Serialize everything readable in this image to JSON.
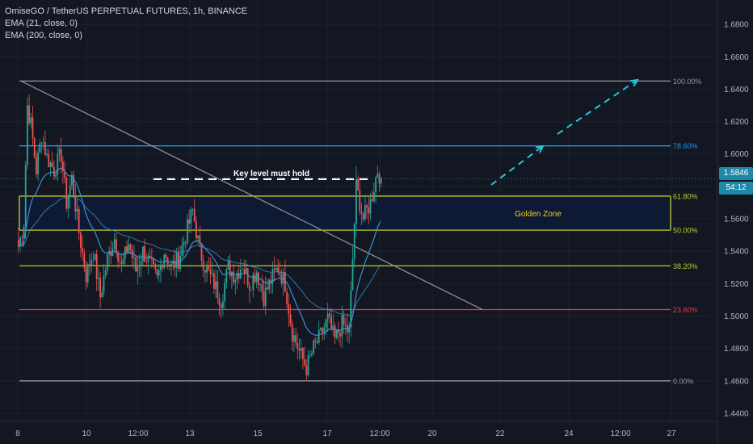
{
  "header": {
    "title": "OmiseGO / TetherUS PERPETUAL FUTURES, 1h, BINANCE",
    "indicators": [
      "EMA (21, close, 0)",
      "EMA (200, close, 0)"
    ]
  },
  "price_axis": {
    "ticks": [
      "1.6800",
      "1.6600",
      "1.6400",
      "1.6200",
      "1.6000",
      "1.5800",
      "1.5600",
      "1.5400",
      "1.5200",
      "1.5000",
      "1.4800",
      "1.4600",
      "1.4400"
    ],
    "current_price": "1.5846",
    "countdown": "54:12"
  },
  "annotations": {
    "key_level": "Key level must hold",
    "golden_zone": "Golden Zone"
  },
  "colors": {
    "background": "#131722",
    "up": "#26a69a",
    "down": "#ef5350",
    "ema21": "#3b8fd6",
    "ema200": "#3b8fd6",
    "fib_0": "#9598a1",
    "fib_100": "#9598a1",
    "fib_786": "#2196f3",
    "fib_618": "#c0ca33",
    "fib_50": "#c0ca33",
    "fib_382": "#c0ca33",
    "fib_236": "#f23645",
    "zone_fill": "#0e1a33",
    "arrow": "#26c6da",
    "trendline": "#9598a1",
    "price_tag": "#1e88a8"
  },
  "chart_data": {
    "type": "candlestick",
    "title": "OmiseGO / TetherUS PERPETUAL FUTURES, 1h, BINANCE",
    "x_ticks": [
      "8",
      "10",
      "12:00",
      "13",
      "15",
      "17",
      "12:00",
      "20",
      "22",
      "24",
      "12:00",
      "27"
    ],
    "ylim": [
      1.435,
      1.695
    ],
    "fib_levels": [
      {
        "label": "100.00%",
        "price": 1.645
      },
      {
        "label": "78.60%",
        "price": 1.605
      },
      {
        "label": "61.80%",
        "price": 1.574
      },
      {
        "label": "50.00%",
        "price": 1.553
      },
      {
        "label": "38.20%",
        "price": 1.531
      },
      {
        "label": "23.60%",
        "price": 1.504
      },
      {
        "label": "0.00%",
        "price": 1.46
      }
    ],
    "key_level_price": 1.5845,
    "last_price": 1.5846,
    "candles_note": "approximate hourly OHLC path",
    "path": [
      [
        0,
        1.543
      ],
      [
        3,
        1.558
      ],
      [
        5,
        1.63
      ],
      [
        7,
        1.618
      ],
      [
        10,
        1.59
      ],
      [
        13,
        1.612
      ],
      [
        16,
        1.598
      ],
      [
        20,
        1.59
      ],
      [
        24,
        1.6
      ],
      [
        27,
        1.57
      ],
      [
        30,
        1.585
      ],
      [
        34,
        1.552
      ],
      [
        38,
        1.525
      ],
      [
        42,
        1.54
      ],
      [
        46,
        1.512
      ],
      [
        50,
        1.535
      ],
      [
        54,
        1.548
      ],
      [
        58,
        1.53
      ],
      [
        62,
        1.545
      ],
      [
        66,
        1.528
      ],
      [
        70,
        1.54
      ],
      [
        74,
        1.532
      ],
      [
        78,
        1.522
      ],
      [
        82,
        1.54
      ],
      [
        86,
        1.53
      ],
      [
        90,
        1.535
      ],
      [
        94,
        1.55
      ],
      [
        98,
        1.565
      ],
      [
        102,
        1.54
      ],
      [
        106,
        1.528
      ],
      [
        110,
        1.52
      ],
      [
        114,
        1.51
      ],
      [
        118,
        1.53
      ],
      [
        122,
        1.525
      ],
      [
        126,
        1.532
      ],
      [
        130,
        1.52
      ],
      [
        134,
        1.528
      ],
      [
        138,
        1.512
      ],
      [
        142,
        1.522
      ],
      [
        146,
        1.53
      ],
      [
        150,
        1.52
      ],
      [
        154,
        1.49
      ],
      [
        158,
        1.478
      ],
      [
        162,
        1.468
      ],
      [
        166,
        1.48
      ],
      [
        170,
        1.488
      ],
      [
        174,
        1.498
      ],
      [
        178,
        1.485
      ],
      [
        182,
        1.495
      ],
      [
        186,
        1.49
      ],
      [
        190,
        1.58
      ],
      [
        194,
        1.56
      ],
      [
        198,
        1.57
      ],
      [
        202,
        1.59
      ],
      [
        204,
        1.585
      ]
    ]
  }
}
